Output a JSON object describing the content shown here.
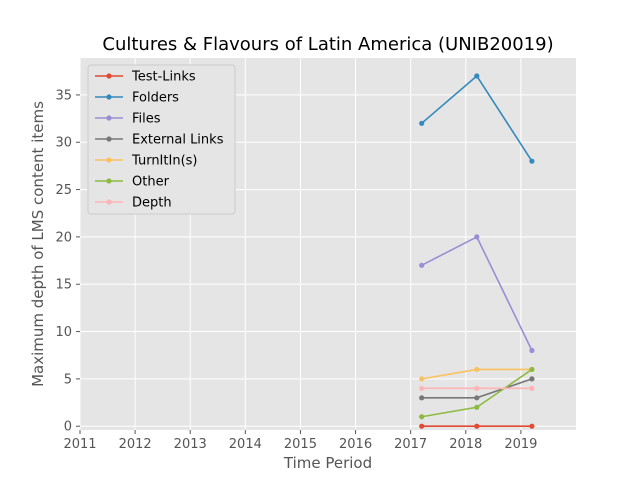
{
  "chart_data": {
    "type": "line",
    "title": "Cultures & Flavours of Latin America (UNIB20019)",
    "xlabel": "Time Period",
    "ylabel": "Maximum depth of LMS content items",
    "xlim": [
      2011,
      2020
    ],
    "ylim": [
      -0.4,
      38.9
    ],
    "xticks": [
      "2011",
      "2012",
      "2013",
      "2014",
      "2015",
      "2016",
      "2017",
      "2018",
      "2019"
    ],
    "yticks": [
      "0",
      "5",
      "10",
      "15",
      "20",
      "25",
      "30",
      "35"
    ],
    "x": [
      2017.2,
      2018.2,
      2019.2
    ],
    "grid": true,
    "legend_position": "top-left",
    "series": [
      {
        "name": "Test-Links",
        "color": "#E24A33",
        "values": [
          0,
          0,
          0
        ]
      },
      {
        "name": "Folders",
        "color": "#348ABD",
        "values": [
          32,
          37,
          28
        ]
      },
      {
        "name": "Files",
        "color": "#988ED5",
        "values": [
          17,
          20,
          8
        ]
      },
      {
        "name": "External Links",
        "color": "#777777",
        "values": [
          3,
          3,
          5
        ]
      },
      {
        "name": "TurnItIn(s)",
        "color": "#FBC15E",
        "values": [
          5,
          6,
          6
        ]
      },
      {
        "name": "Other",
        "color": "#8EBA42",
        "values": [
          1,
          2,
          6
        ]
      },
      {
        "name": "Depth",
        "color": "#FFB5B8",
        "values": [
          4,
          4,
          4
        ]
      }
    ]
  }
}
